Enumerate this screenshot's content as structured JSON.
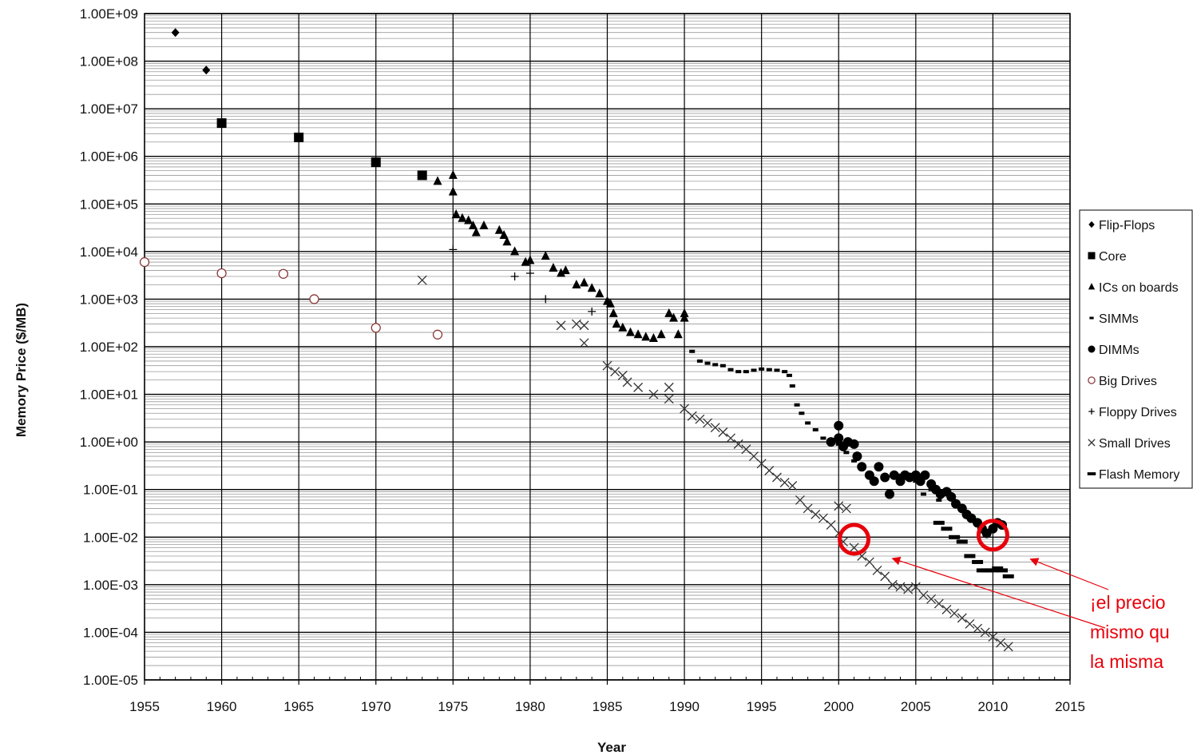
{
  "chart_data": {
    "type": "scatter",
    "title": "",
    "xlabel": "Year",
    "ylabel": "Memory Price ($/MB)",
    "x_range": [
      1955,
      2015
    ],
    "x_ticks": [
      "1955",
      "1960",
      "1965",
      "1970",
      "1975",
      "1980",
      "1985",
      "1990",
      "1995",
      "2000",
      "2005",
      "2010",
      "2015"
    ],
    "y_scale": "log",
    "y_range": [
      1e-05,
      1000000000.0
    ],
    "y_ticks": [
      "1.00E-05",
      "1.00E-04",
      "1.00E-03",
      "1.00E-02",
      "1.00E-01",
      "1.00E+00",
      "1.00E+01",
      "1.00E+02",
      "1.00E+03",
      "1.00E+04",
      "1.00E+05",
      "1.00E+06",
      "1.00E+07",
      "1.00E+08",
      "1.00E+09"
    ],
    "grid": true,
    "legend_position": "right",
    "colors": {
      "series": "#000000",
      "big_drives": "#8b3a3a",
      "annotation": "#e8000b",
      "grid": "#000000"
    },
    "series": [
      {
        "name": "Flip-Flops",
        "marker": "diamond",
        "points": [
          [
            1957,
            400000000
          ],
          [
            1959,
            65000000
          ]
        ]
      },
      {
        "name": "Core",
        "marker": "square",
        "points": [
          [
            1960,
            5000000
          ],
          [
            1965,
            2500000
          ],
          [
            1970,
            750000
          ],
          [
            1973,
            400000
          ]
        ]
      },
      {
        "name": "ICs on boards",
        "marker": "triangle",
        "points": [
          [
            1974,
            300000
          ],
          [
            1975,
            400000
          ],
          [
            1975,
            180000
          ],
          [
            1975.2,
            60000
          ],
          [
            1975.6,
            50000
          ],
          [
            1976,
            45000
          ],
          [
            1976.3,
            35000
          ],
          [
            1976.5,
            25000
          ],
          [
            1977,
            35000
          ],
          [
            1978,
            28000
          ],
          [
            1978.3,
            22000
          ],
          [
            1978.5,
            16000
          ],
          [
            1979,
            10000
          ],
          [
            1979.7,
            6000
          ],
          [
            1980,
            6500
          ],
          [
            1981,
            8000
          ],
          [
            1981.5,
            4500
          ],
          [
            1982,
            3500
          ],
          [
            1982.3,
            4000
          ],
          [
            1983,
            2000
          ],
          [
            1983.5,
            2200
          ],
          [
            1984,
            1700
          ],
          [
            1984.5,
            1300
          ],
          [
            1985,
            900
          ],
          [
            1985.2,
            800
          ],
          [
            1985.4,
            500
          ],
          [
            1985.6,
            300
          ],
          [
            1986,
            250
          ],
          [
            1986.5,
            200
          ],
          [
            1987,
            180
          ],
          [
            1987.5,
            160
          ],
          [
            1988,
            150
          ],
          [
            1988.5,
            180
          ],
          [
            1989,
            500
          ],
          [
            1989.3,
            400
          ],
          [
            1989.6,
            180
          ],
          [
            1990,
            400
          ],
          [
            1990,
            500
          ]
        ]
      },
      {
        "name": "SIMMs",
        "marker": "dash",
        "points": [
          [
            1990.5,
            80
          ],
          [
            1991,
            50
          ],
          [
            1991.5,
            45
          ],
          [
            1992,
            42
          ],
          [
            1992.5,
            40
          ],
          [
            1993,
            33
          ],
          [
            1993.5,
            30
          ],
          [
            1994,
            30
          ],
          [
            1994.5,
            32
          ],
          [
            1995,
            34
          ],
          [
            1995.5,
            33
          ],
          [
            1996,
            32
          ],
          [
            1996.5,
            30
          ],
          [
            1996.8,
            25
          ],
          [
            1997,
            15
          ],
          [
            1997.3,
            6
          ],
          [
            1997.6,
            4
          ],
          [
            1998,
            2.5
          ],
          [
            1998.5,
            1.8
          ],
          [
            1999,
            1.2
          ],
          [
            1999.5,
            1.0
          ],
          [
            2000,
            0.9
          ],
          [
            2000.5,
            0.6
          ],
          [
            2001,
            0.4
          ],
          [
            2001.5,
            0.3
          ],
          [
            2002,
            0.2
          ],
          [
            2003,
            0.18
          ],
          [
            2004,
            0.2
          ],
          [
            2005,
            0.15
          ],
          [
            2005.5,
            0.08
          ],
          [
            2006,
            0.1
          ],
          [
            2006.5,
            0.06
          ]
        ]
      },
      {
        "name": "DIMMs",
        "marker": "circle",
        "points": [
          [
            1999.5,
            1.0
          ],
          [
            2000,
            1.2
          ],
          [
            2000,
            2.2
          ],
          [
            2000.3,
            0.8
          ],
          [
            2000.6,
            1.0
          ],
          [
            2001,
            0.9
          ],
          [
            2001.2,
            0.5
          ],
          [
            2001.5,
            0.3
          ],
          [
            2002,
            0.2
          ],
          [
            2002.3,
            0.15
          ],
          [
            2002.6,
            0.3
          ],
          [
            2003,
            0.18
          ],
          [
            2003.3,
            0.08
          ],
          [
            2003.6,
            0.2
          ],
          [
            2004,
            0.15
          ],
          [
            2004.3,
            0.2
          ],
          [
            2004.6,
            0.18
          ],
          [
            2005,
            0.2
          ],
          [
            2005.3,
            0.15
          ],
          [
            2005.6,
            0.2
          ],
          [
            2006,
            0.13
          ],
          [
            2006.3,
            0.1
          ],
          [
            2006.6,
            0.08
          ],
          [
            2007,
            0.09
          ],
          [
            2007.3,
            0.07
          ],
          [
            2007.6,
            0.05
          ],
          [
            2008,
            0.04
          ],
          [
            2008.3,
            0.03
          ],
          [
            2008.6,
            0.025
          ],
          [
            2009,
            0.02
          ],
          [
            2009.3,
            0.015
          ],
          [
            2009.6,
            0.012
          ],
          [
            2010,
            0.015
          ],
          [
            2010.3,
            0.02
          ],
          [
            2010.6,
            0.018
          ]
        ]
      },
      {
        "name": "Big Drives",
        "marker": "open-circle",
        "points": [
          [
            1955,
            6000
          ],
          [
            1960,
            3500
          ],
          [
            1964,
            3400
          ],
          [
            1966,
            1000
          ],
          [
            1970,
            250
          ],
          [
            1974,
            180
          ]
        ]
      },
      {
        "name": "Floppy Drives",
        "marker": "plus",
        "points": [
          [
            1975,
            11000
          ],
          [
            1979,
            3000
          ],
          [
            1980,
            3500
          ],
          [
            1981,
            1000
          ],
          [
            1984,
            550
          ]
        ]
      },
      {
        "name": "Small Drives",
        "marker": "x",
        "points": [
          [
            1973,
            2500
          ],
          [
            1982,
            280
          ],
          [
            1983,
            300
          ],
          [
            1983.5,
            280
          ],
          [
            1983.5,
            120
          ],
          [
            1985,
            40
          ],
          [
            1985.5,
            30
          ],
          [
            1986,
            25
          ],
          [
            1986.3,
            18
          ],
          [
            1987,
            14
          ],
          [
            1988,
            10
          ],
          [
            1989,
            8
          ],
          [
            1989,
            14
          ],
          [
            1990,
            5
          ],
          [
            1990.5,
            3.5
          ],
          [
            1991,
            3
          ],
          [
            1991.5,
            2.5
          ],
          [
            1992,
            2
          ],
          [
            1992.5,
            1.6
          ],
          [
            1993,
            1.2
          ],
          [
            1993.5,
            0.9
          ],
          [
            1994,
            0.7
          ],
          [
            1994.5,
            0.5
          ],
          [
            1995,
            0.35
          ],
          [
            1995.5,
            0.25
          ],
          [
            1996,
            0.18
          ],
          [
            1996.5,
            0.14
          ],
          [
            1997,
            0.12
          ],
          [
            1997.5,
            0.06
          ],
          [
            1998,
            0.04
          ],
          [
            1998.5,
            0.03
          ],
          [
            1999,
            0.025
          ],
          [
            1999.5,
            0.018
          ],
          [
            2000,
            0.012
          ],
          [
            2000.3,
            0.008
          ],
          [
            2000,
            0.045
          ],
          [
            2000.5,
            0.04
          ],
          [
            2001,
            0.006
          ],
          [
            2001.5,
            0.004
          ],
          [
            2002,
            0.003
          ],
          [
            2002.5,
            0.002
          ],
          [
            2003,
            0.0015
          ],
          [
            2003.5,
            0.001
          ],
          [
            2004,
            0.0009
          ],
          [
            2004.5,
            0.0008
          ],
          [
            2005,
            0.0009
          ],
          [
            2005.5,
            0.0006
          ],
          [
            2006,
            0.0005
          ],
          [
            2006.5,
            0.0004
          ],
          [
            2007,
            0.0003
          ],
          [
            2007.5,
            0.00025
          ],
          [
            2008,
            0.0002
          ],
          [
            2008.5,
            0.00015
          ],
          [
            2009,
            0.00012
          ],
          [
            2009.5,
            0.0001
          ],
          [
            2010,
            8e-05
          ],
          [
            2010.5,
            6e-05
          ],
          [
            2011,
            5e-05
          ]
        ]
      },
      {
        "name": "Flash Memory",
        "marker": "bar",
        "points": [
          [
            2006.5,
            0.02
          ],
          [
            2007,
            0.015
          ],
          [
            2007.5,
            0.01
          ],
          [
            2008,
            0.008
          ],
          [
            2008.5,
            0.004
          ],
          [
            2009,
            0.003
          ],
          [
            2009.3,
            0.002
          ],
          [
            2009.6,
            0.002
          ],
          [
            2010,
            0.002
          ],
          [
            2010.3,
            0.0022
          ],
          [
            2010.6,
            0.002
          ],
          [
            2011,
            0.0015
          ]
        ]
      }
    ],
    "annotation": {
      "lines": [
        "¡el precio",
        "mismo qu",
        "la misma"
      ],
      "circle_targets": [
        [
          2001,
          0.009
        ],
        [
          2010,
          0.011
        ]
      ]
    }
  }
}
